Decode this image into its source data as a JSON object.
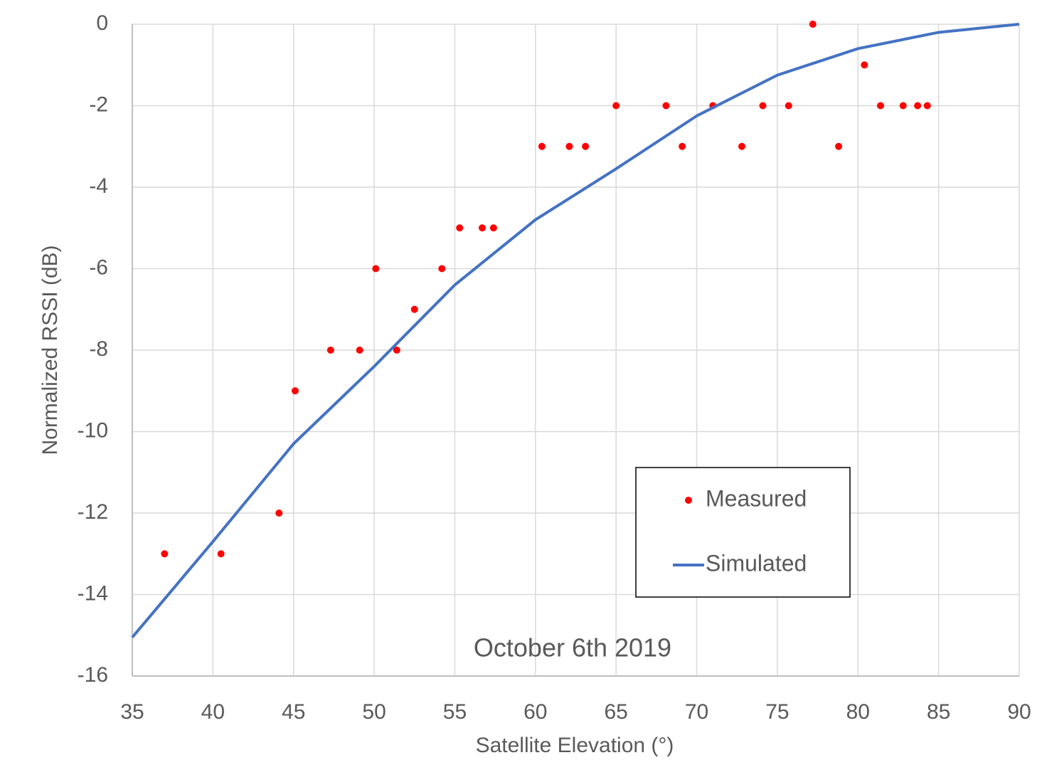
{
  "chart_data": {
    "type": "scatter",
    "x_label": "Satellite Elevation (°)",
    "y_label": "Normalized RSSI (dB)",
    "annotation": "October 6th 2019",
    "xlim": [
      35,
      90
    ],
    "xticks": [
      35,
      40,
      45,
      50,
      55,
      60,
      65,
      70,
      75,
      80,
      85,
      90
    ],
    "ylim": [
      -16,
      0
    ],
    "yticks": [
      -16,
      -14,
      -12,
      -10,
      -8,
      -6,
      -4,
      -2,
      0
    ],
    "grid": true,
    "legend": "right",
    "series": [
      {
        "name": "Measured",
        "type": "scatter",
        "color": "#ff0000",
        "x": [
          37.0,
          40.5,
          44.1,
          45.1,
          47.3,
          49.1,
          50.1,
          51.4,
          52.5,
          54.2,
          55.3,
          56.7,
          57.4,
          60.4,
          62.1,
          63.1,
          65.0,
          68.1,
          69.1,
          71.0,
          72.8,
          74.1,
          75.7,
          77.2,
          78.8,
          80.4,
          81.4,
          82.8,
          83.7,
          84.3
        ],
        "values": [
          -13,
          -13,
          -12,
          -9,
          -8,
          -8,
          -6,
          -8,
          -7,
          -6,
          -5,
          -5,
          -5,
          -3,
          -3,
          -3,
          -2,
          -2,
          -3,
          -2,
          -3,
          -2,
          -2,
          0,
          -3,
          -1,
          -2,
          -2,
          -2,
          -2
        ]
      },
      {
        "name": "Simulated",
        "type": "line",
        "color": "#4472c4",
        "x": [
          35,
          40,
          45,
          50,
          55,
          60,
          65,
          70,
          75,
          80,
          85,
          90
        ],
        "values": [
          -15.05,
          -12.7,
          -10.3,
          -8.4,
          -6.4,
          -4.8,
          -3.55,
          -2.25,
          -1.25,
          -0.6,
          -0.2,
          0
        ]
      }
    ]
  }
}
